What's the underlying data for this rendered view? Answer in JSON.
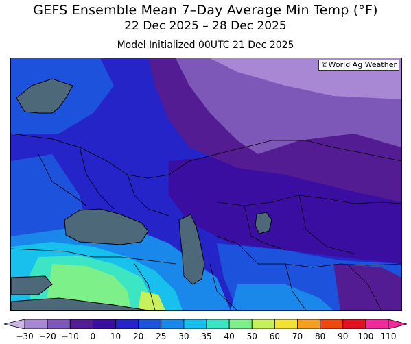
{
  "title": "GEFS Ensemble Mean 7–Day Average Min Temp (°F)",
  "date_range": "22 Dec 2025 – 28 Dec 2025",
  "init_label": "Model Initialized 00UTC 21 Dec 2025",
  "credit": "©World Ag Weather",
  "colorbar": {
    "ticks": [
      "−30",
      "−20",
      "−10",
      "0",
      "10",
      "20",
      "25",
      "30",
      "35",
      "40",
      "50",
      "60",
      "70",
      "80",
      "90",
      "100",
      "110"
    ],
    "colors": [
      "#cbb6e6",
      "#a888d4",
      "#7e58b8",
      "#541c92",
      "#3a0ea0",
      "#2424c8",
      "#1d52dc",
      "#1a88ea",
      "#18c0ee",
      "#3ce6c4",
      "#7ef08a",
      "#c8f05a",
      "#f2e234",
      "#f5a020",
      "#ee4810",
      "#e21020",
      "#ef2a9a"
    ],
    "units": "°F"
  },
  "palette": {
    "sea": "#4d6878",
    "coast": "#000000"
  }
}
